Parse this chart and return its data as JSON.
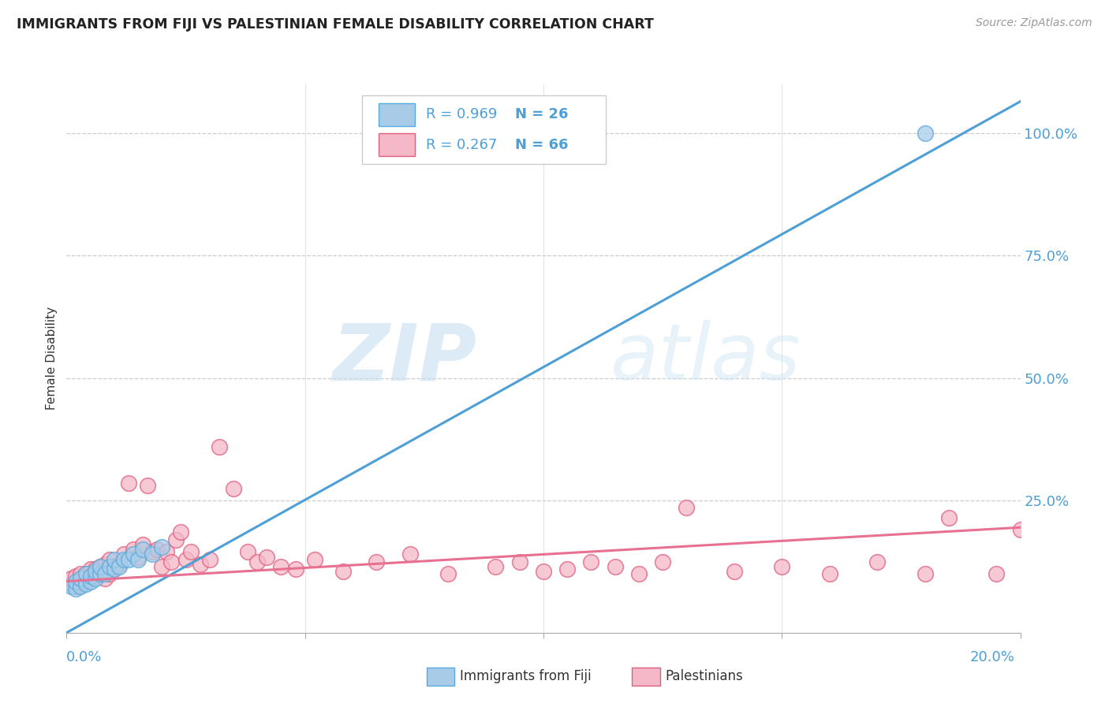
{
  "title": "IMMIGRANTS FROM FIJI VS PALESTINIAN FEMALE DISABILITY CORRELATION CHART",
  "source": "Source: ZipAtlas.com",
  "ylabel": "Female Disability",
  "xlim": [
    0.0,
    0.2
  ],
  "ylim": [
    -0.02,
    1.1
  ],
  "fiji_R": 0.969,
  "fiji_N": 26,
  "palest_R": 0.267,
  "palest_N": 66,
  "fiji_color": "#a8cce8",
  "palest_color": "#f4b8c8",
  "fiji_line_color": "#4d9fd6",
  "palest_line_color": "#e87090",
  "fiji_edge_color": "#5aaadd",
  "palest_edge_color": "#e06080",
  "blue_text_color": "#4d9fd6",
  "legend_fiji_label": "Immigrants from Fiji",
  "legend_palest_label": "Palestinians",
  "watermark_zip": "ZIP",
  "watermark_atlas": "atlas",
  "ytick_vals": [
    0.25,
    0.5,
    0.75,
    1.0
  ],
  "ytick_labels": [
    "25.0%",
    "50.0%",
    "75.0%",
    "100.0%"
  ],
  "xtick_vals": [
    0.0,
    0.05,
    0.1,
    0.15,
    0.2
  ],
  "fiji_line_x0": 0.0,
  "fiji_line_y0": -0.02,
  "fiji_line_x1": 0.2,
  "fiji_line_y1": 1.065,
  "palest_line_x0": 0.0,
  "palest_line_y0": 0.085,
  "palest_line_x1": 0.2,
  "palest_line_y1": 0.195,
  "fiji_scatter_x": [
    0.001,
    0.002,
    0.002,
    0.003,
    0.003,
    0.004,
    0.004,
    0.005,
    0.005,
    0.006,
    0.006,
    0.007,
    0.007,
    0.008,
    0.009,
    0.01,
    0.01,
    0.011,
    0.012,
    0.013,
    0.014,
    0.015,
    0.016,
    0.018,
    0.02,
    0.18
  ],
  "fiji_scatter_y": [
    0.075,
    0.07,
    0.085,
    0.075,
    0.09,
    0.08,
    0.1,
    0.085,
    0.095,
    0.09,
    0.105,
    0.1,
    0.115,
    0.1,
    0.115,
    0.11,
    0.13,
    0.115,
    0.13,
    0.13,
    0.14,
    0.13,
    0.15,
    0.14,
    0.155,
    1.0
  ],
  "palest_scatter_x": [
    0.001,
    0.001,
    0.002,
    0.002,
    0.003,
    0.003,
    0.004,
    0.004,
    0.005,
    0.005,
    0.006,
    0.006,
    0.007,
    0.007,
    0.008,
    0.008,
    0.009,
    0.009,
    0.01,
    0.011,
    0.012,
    0.013,
    0.014,
    0.015,
    0.016,
    0.017,
    0.018,
    0.019,
    0.02,
    0.021,
    0.022,
    0.023,
    0.024,
    0.025,
    0.026,
    0.028,
    0.03,
    0.032,
    0.035,
    0.038,
    0.04,
    0.042,
    0.045,
    0.048,
    0.052,
    0.058,
    0.065,
    0.072,
    0.08,
    0.09,
    0.095,
    0.1,
    0.105,
    0.11,
    0.115,
    0.12,
    0.125,
    0.13,
    0.14,
    0.15,
    0.16,
    0.17,
    0.18,
    0.185,
    0.195,
    0.2
  ],
  "palest_scatter_y": [
    0.08,
    0.09,
    0.075,
    0.095,
    0.08,
    0.1,
    0.085,
    0.1,
    0.09,
    0.11,
    0.095,
    0.11,
    0.1,
    0.115,
    0.09,
    0.12,
    0.1,
    0.13,
    0.115,
    0.12,
    0.14,
    0.285,
    0.15,
    0.135,
    0.16,
    0.28,
    0.145,
    0.15,
    0.115,
    0.145,
    0.125,
    0.17,
    0.185,
    0.13,
    0.145,
    0.12,
    0.13,
    0.36,
    0.275,
    0.145,
    0.125,
    0.135,
    0.115,
    0.11,
    0.13,
    0.105,
    0.125,
    0.14,
    0.1,
    0.115,
    0.125,
    0.105,
    0.11,
    0.125,
    0.115,
    0.1,
    0.125,
    0.235,
    0.105,
    0.115,
    0.1,
    0.125,
    0.1,
    0.215,
    0.1,
    0.19
  ]
}
